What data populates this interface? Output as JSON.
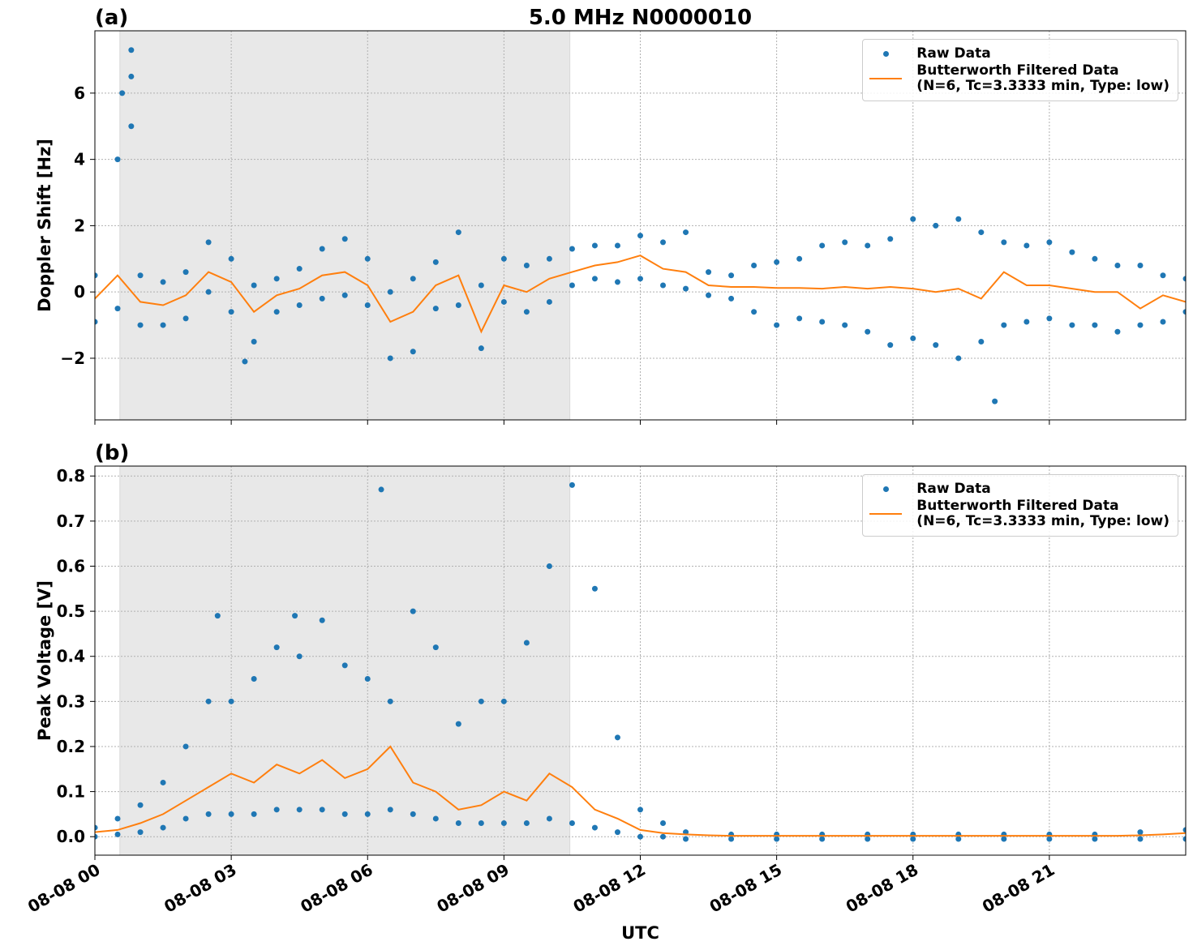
{
  "chart_data": [
    {
      "type": "scatter",
      "panel_label": "(a)",
      "title": "5.0 MHz N0000010",
      "ylabel": "Doppler Shift [Hz]",
      "xlim": [
        0,
        24
      ],
      "xticks": [
        0,
        3,
        6,
        9,
        12,
        15,
        18,
        21
      ],
      "ylim": [
        -3.86,
        7.88
      ],
      "yticks": [
        {
          "value": -2,
          "label": "−2"
        },
        0,
        2,
        4,
        6
      ],
      "grid": true,
      "legend": "upper right",
      "shaded_span": [
        0.55,
        10.45
      ],
      "series": [
        {
          "name": "Raw Data",
          "color": "#1f77b4",
          "style": "dots",
          "x": [
            0,
            0,
            0.5,
            0.5,
            0.6,
            0.8,
            0.8,
            0.8,
            1,
            1,
            1.5,
            1.5,
            2,
            2,
            2.5,
            2.5,
            3,
            3,
            3.3,
            3.5,
            3.5,
            4,
            4,
            4.5,
            4.5,
            5,
            5,
            5.5,
            5.5,
            6,
            6,
            6.5,
            6.5,
            7,
            7,
            7.5,
            7.5,
            8,
            8,
            8.5,
            8.5,
            9,
            9,
            9.5,
            9.5,
            10,
            10,
            10.5,
            10.5,
            11,
            11,
            11.5,
            11.5,
            12,
            12,
            12.5,
            12.5,
            13,
            13,
            13.5,
            13.5,
            14,
            14,
            14.5,
            14.5,
            15,
            15,
            15.5,
            15.5,
            16,
            16,
            16.5,
            16.5,
            17,
            17,
            17.5,
            17.5,
            18,
            18,
            18.5,
            18.5,
            19,
            19,
            19.5,
            19.5,
            19.8,
            20,
            20,
            20.5,
            20.5,
            21,
            21,
            21.5,
            21.5,
            22,
            22,
            22.5,
            22.5,
            23,
            23,
            23.5,
            23.5,
            24,
            24
          ],
          "values": [
            0.5,
            -0.9,
            4.0,
            -0.5,
            6.0,
            7.3,
            6.5,
            5.0,
            0.5,
            -1.0,
            0.3,
            -1.0,
            0.6,
            -0.8,
            1.5,
            0.0,
            1.0,
            -0.6,
            -2.1,
            0.2,
            -1.5,
            0.4,
            -0.6,
            0.7,
            -0.4,
            1.3,
            -0.2,
            1.6,
            -0.1,
            1.0,
            -0.4,
            0.0,
            -2.0,
            0.4,
            -1.8,
            0.9,
            -0.5,
            1.8,
            -0.4,
            0.2,
            -1.7,
            1.0,
            -0.3,
            0.8,
            -0.6,
            1.0,
            -0.3,
            1.3,
            0.2,
            1.4,
            0.4,
            1.4,
            0.3,
            1.7,
            0.4,
            1.5,
            0.2,
            1.8,
            0.1,
            0.6,
            -0.1,
            0.5,
            -0.2,
            0.8,
            -0.6,
            0.9,
            -1.0,
            1.0,
            -0.8,
            1.4,
            -0.9,
            1.5,
            -1.0,
            1.4,
            -1.2,
            1.6,
            -1.6,
            2.2,
            -1.4,
            2.0,
            -1.6,
            2.2,
            -2.0,
            1.8,
            -1.5,
            -3.3,
            1.5,
            -1.0,
            1.4,
            -0.9,
            1.5,
            -0.8,
            1.2,
            -1.0,
            1.0,
            -1.0,
            0.8,
            -1.2,
            0.8,
            -1.0,
            0.5,
            -0.9,
            0.4,
            -0.6
          ]
        },
        {
          "name": "Butterworth Filtered Data\n(N=6, Tc=3.3333 min, Type: low)",
          "color": "#ff7f0e",
          "style": "line",
          "x": [
            0,
            0.5,
            1,
            1.5,
            2,
            2.5,
            3,
            3.5,
            4,
            4.5,
            5,
            5.5,
            6,
            6.5,
            7,
            7.5,
            8,
            8.5,
            9,
            9.5,
            10,
            10.5,
            11,
            11.5,
            12,
            12.5,
            13,
            13.5,
            14,
            14.5,
            15,
            15.5,
            16,
            16.5,
            17,
            17.5,
            18,
            18.5,
            19,
            19.5,
            20,
            20.5,
            21,
            21.5,
            22,
            22.5,
            23,
            23.5,
            24
          ],
          "values": [
            -0.2,
            0.5,
            -0.3,
            -0.4,
            -0.1,
            0.6,
            0.3,
            -0.6,
            -0.1,
            0.1,
            0.5,
            0.6,
            0.2,
            -0.9,
            -0.6,
            0.2,
            0.5,
            -1.2,
            0.2,
            0.0,
            0.4,
            0.6,
            0.8,
            0.9,
            1.1,
            0.7,
            0.6,
            0.2,
            0.15,
            0.15,
            0.12,
            0.12,
            0.1,
            0.15,
            0.1,
            0.15,
            0.1,
            0.0,
            0.1,
            -0.2,
            0.6,
            0.2,
            0.2,
            0.1,
            0.0,
            0.0,
            -0.5,
            -0.1,
            -0.3
          ]
        }
      ]
    },
    {
      "type": "scatter",
      "panel_label": "(b)",
      "ylabel": "Peak Voltage [V]",
      "xlabel": "UTC",
      "xlim": [
        0,
        24
      ],
      "xticks": [
        {
          "value": 0,
          "label": "08-08 00"
        },
        {
          "value": 3,
          "label": "08-08 03"
        },
        {
          "value": 6,
          "label": "08-08 06"
        },
        {
          "value": 9,
          "label": "08-08 09"
        },
        {
          "value": 12,
          "label": "08-08 12"
        },
        {
          "value": 15,
          "label": "08-08 15"
        },
        {
          "value": 18,
          "label": "08-08 18"
        },
        {
          "value": 21,
          "label": "08-08 21"
        }
      ],
      "ylim": [
        -0.041,
        0.822
      ],
      "yticks": [
        {
          "value": 0,
          "label": "0.0"
        },
        0.1,
        0.2,
        0.3,
        0.4,
        0.5,
        0.6,
        0.7,
        0.8
      ],
      "grid": true,
      "legend": "upper right",
      "shaded_span": [
        0.55,
        10.45
      ],
      "series": [
        {
          "name": "Raw Data",
          "color": "#1f77b4",
          "style": "dots",
          "x": [
            0,
            0,
            0.5,
            0.5,
            1,
            1,
            1.5,
            1.5,
            2,
            2,
            2.5,
            2.5,
            2.7,
            3,
            3,
            3.5,
            3.5,
            4,
            4,
            4.4,
            4.5,
            4.5,
            5,
            5,
            5.5,
            5.5,
            6,
            6,
            6.3,
            6.5,
            6.5,
            7,
            7,
            7.5,
            7.5,
            8,
            8,
            8.5,
            8.5,
            9,
            9,
            9.5,
            9.5,
            10,
            10,
            10.5,
            10.5,
            11,
            11,
            11.5,
            11.5,
            12,
            12,
            12.5,
            12.5,
            13,
            13,
            14,
            14,
            15,
            15,
            16,
            16,
            17,
            17,
            18,
            18,
            19,
            19,
            20,
            20,
            21,
            21,
            22,
            22,
            23,
            23,
            24,
            24
          ],
          "values": [
            0.02,
            0.0,
            0.04,
            0.005,
            0.07,
            0.01,
            0.12,
            0.02,
            0.2,
            0.04,
            0.3,
            0.05,
            0.49,
            0.3,
            0.05,
            0.35,
            0.05,
            0.42,
            0.06,
            0.49,
            0.4,
            0.06,
            0.48,
            0.06,
            0.38,
            0.05,
            0.35,
            0.05,
            0.77,
            0.3,
            0.06,
            0.5,
            0.05,
            0.42,
            0.04,
            0.25,
            0.03,
            0.3,
            0.03,
            0.3,
            0.03,
            0.43,
            0.03,
            0.6,
            0.04,
            0.78,
            0.03,
            0.55,
            0.02,
            0.22,
            0.01,
            0.06,
            0.0,
            0.03,
            0.0,
            0.01,
            -0.005,
            0.005,
            -0.005,
            0.005,
            -0.005,
            0.005,
            -0.005,
            0.005,
            -0.005,
            0.005,
            -0.005,
            0.005,
            -0.005,
            0.005,
            -0.005,
            0.005,
            -0.005,
            0.005,
            -0.005,
            0.01,
            -0.005,
            0.015,
            -0.005
          ]
        },
        {
          "name": "Butterworth Filtered Data\n(N=6, Tc=3.3333 min, Type: low)",
          "color": "#ff7f0e",
          "style": "line",
          "x": [
            0,
            0.5,
            1,
            1.5,
            2,
            2.5,
            3,
            3.5,
            4,
            4.5,
            5,
            5.5,
            6,
            6.5,
            7,
            7.5,
            8,
            8.5,
            9,
            9.5,
            10,
            10.5,
            11,
            11.5,
            12,
            12.5,
            13,
            13.5,
            14,
            14.5,
            15,
            15.5,
            16,
            16.5,
            17,
            17.5,
            18,
            18.5,
            19,
            19.5,
            20,
            20.5,
            21,
            21.5,
            22,
            22.5,
            23,
            23.5,
            24
          ],
          "values": [
            0.01,
            0.015,
            0.03,
            0.05,
            0.08,
            0.11,
            0.14,
            0.12,
            0.16,
            0.14,
            0.17,
            0.13,
            0.15,
            0.2,
            0.12,
            0.1,
            0.06,
            0.07,
            0.1,
            0.08,
            0.14,
            0.11,
            0.06,
            0.04,
            0.015,
            0.008,
            0.005,
            0.003,
            0.002,
            0.002,
            0.002,
            0.002,
            0.002,
            0.002,
            0.002,
            0.002,
            0.002,
            0.002,
            0.002,
            0.002,
            0.002,
            0.002,
            0.002,
            0.002,
            0.002,
            0.002,
            0.003,
            0.005,
            0.008
          ]
        }
      ]
    }
  ]
}
